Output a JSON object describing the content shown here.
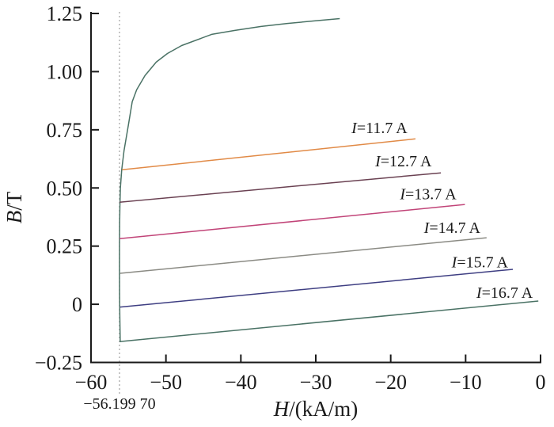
{
  "page": {
    "background": "#ffffff",
    "text_color": "#1a1a1a"
  },
  "chart_data": {
    "type": "line",
    "title": "",
    "xlabel": "H/(kA/m)",
    "ylabel": "B/T",
    "xlim": [
      -60,
      0
    ],
    "ylim": [
      -0.25,
      1.25
    ],
    "grid": false,
    "legend": "inline-labels",
    "axis_color": "#1a1a1a",
    "x_ticks": [
      -60,
      -50,
      -40,
      -30,
      -20,
      -10,
      0
    ],
    "x_tick_labels": [
      "−60",
      "−50",
      "−40",
      "−30",
      "−20",
      "−10",
      "0"
    ],
    "y_ticks": [
      -0.25,
      0,
      0.25,
      0.5,
      0.75,
      1.0,
      1.25
    ],
    "y_tick_labels": [
      "−0.25",
      "0",
      "0.25",
      "0.50",
      "0.75",
      "1.00",
      "1.25"
    ],
    "annotation": {
      "label": "−56.199 70",
      "x": -56.1997,
      "style": "dashed-vertical",
      "line_color": "#a0a0a0"
    },
    "series": [
      {
        "name": "initial-magnetization-curve",
        "label": "",
        "color": "#4a7265",
        "points": [
          [
            -56.1,
            -0.163
          ],
          [
            -56.16,
            -0.05
          ],
          [
            -56.19,
            0.05
          ],
          [
            -56.2,
            0.15
          ],
          [
            -56.2,
            0.25
          ],
          [
            -56.18,
            0.35
          ],
          [
            -56.14,
            0.42
          ],
          [
            -56.08,
            0.5
          ],
          [
            -55.9,
            0.578
          ],
          [
            -55.6,
            0.66
          ],
          [
            -55.0,
            0.772
          ],
          [
            -54.5,
            0.871
          ],
          [
            -53.9,
            0.922
          ],
          [
            -52.8,
            0.983
          ],
          [
            -51.3,
            1.041
          ],
          [
            -49.8,
            1.078
          ],
          [
            -47.9,
            1.112
          ],
          [
            -43.9,
            1.16
          ],
          [
            -40.8,
            1.177
          ],
          [
            -37.3,
            1.194
          ],
          [
            -33.8,
            1.207
          ],
          [
            -30.2,
            1.218
          ],
          [
            -26.8,
            1.228
          ]
        ]
      },
      {
        "name": "line-I-11.7A",
        "label": "I=11.7 A",
        "color": "#e18a46",
        "points": [
          [
            -55.85,
            0.578
          ],
          [
            -16.7,
            0.711
          ]
        ],
        "label_x": -21.5,
        "label_y": 0.735
      },
      {
        "name": "line-I-12.7A",
        "label": "I=12.7 A",
        "color": "#6a4152",
        "points": [
          [
            -56.18,
            0.439
          ],
          [
            -13.3,
            0.565
          ]
        ],
        "label_x": -18.3,
        "label_y": 0.592
      },
      {
        "name": "line-I-13.7A",
        "label": "I=13.7 A",
        "color": "#c14478",
        "points": [
          [
            -56.19,
            0.282
          ],
          [
            -10.1,
            0.429
          ]
        ],
        "label_x": -15.0,
        "label_y": 0.452
      },
      {
        "name": "line-I-14.7A",
        "label": "I=14.7 A",
        "color": "#8b8b84",
        "points": [
          [
            -56.12,
            0.133
          ],
          [
            -7.2,
            0.286
          ]
        ],
        "label_x": -11.8,
        "label_y": 0.306
      },
      {
        "name": "line-I-15.7A",
        "label": "I=15.7 A",
        "color": "#3e3e82",
        "points": [
          [
            -56.12,
            -0.012
          ],
          [
            -3.7,
            0.15
          ]
        ],
        "label_x": -8.1,
        "label_y": 0.158
      },
      {
        "name": "line-I-16.7A",
        "label": "I=16.7 A",
        "color": "#4a7265",
        "points": [
          [
            -56.1,
            -0.16
          ],
          [
            -0.3,
            0.014
          ]
        ],
        "label_x": -4.8,
        "label_y": 0.028
      }
    ]
  }
}
